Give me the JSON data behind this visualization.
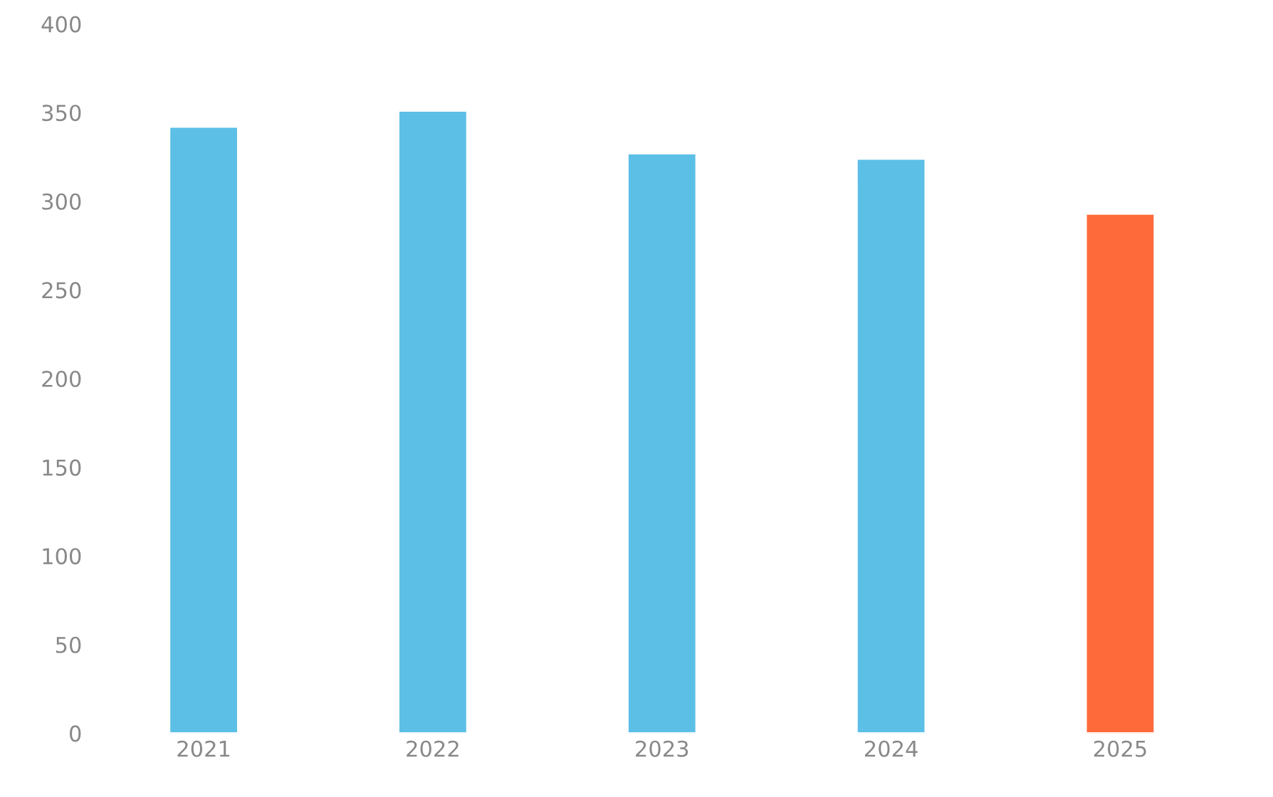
{
  "chart_data": {
    "type": "bar",
    "categories": [
      "2021",
      "2022",
      "2023",
      "2024",
      "2025"
    ],
    "values": [
      342,
      351,
      327,
      324,
      293
    ],
    "colors": [
      "#5cbfe6",
      "#5cbfe6",
      "#5cbfe6",
      "#5cbfe6",
      "#ff6a3a"
    ],
    "ylim": [
      0,
      400
    ],
    "yticks": [
      0,
      50,
      100,
      150,
      200,
      250,
      300,
      350,
      400
    ],
    "grid": false
  }
}
